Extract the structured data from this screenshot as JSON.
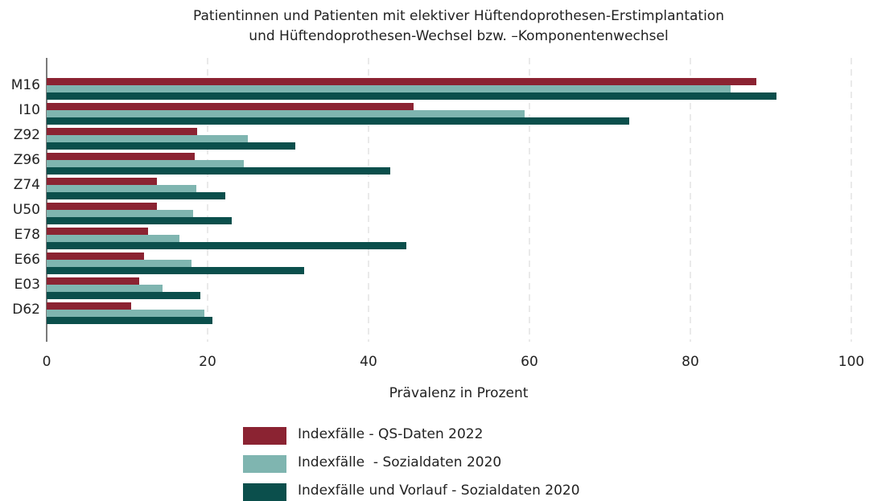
{
  "chart_data": {
    "type": "hbar",
    "title": [
      "Patientinnen und Patienten mit elektiver Hüftendoprothesen-Erstimplantation",
      "und Hüftendoprothesen-Wechsel bzw. –Komponentenwechsel"
    ],
    "x_label": "Prävalenz in Prozent",
    "categories": [
      "M16",
      "I10",
      "Z92",
      "Z96",
      "Z74",
      "U50",
      "E78",
      "E66",
      "E03",
      "D62"
    ],
    "series": [
      {
        "name": "Indexfälle - QS-Daten 2022",
        "color": "#8b2332",
        "values": [
          88.2,
          45.6,
          18.7,
          18.4,
          13.7,
          13.7,
          12.6,
          12.1,
          11.5,
          10.5
        ]
      },
      {
        "name": "Indexfälle  - Sozialdaten 2020",
        "color": "#7fb5b0",
        "values": [
          85.0,
          59.4,
          25.0,
          24.5,
          18.6,
          18.2,
          16.5,
          18.0,
          14.4,
          19.6
        ]
      },
      {
        "name": "Indexfälle und Vorlauf - Sozialdaten 2020",
        "color": "#0b4f4c",
        "values": [
          90.7,
          72.4,
          30.9,
          42.7,
          22.2,
          23.0,
          44.7,
          32.0,
          19.1,
          20.6
        ]
      }
    ],
    "xlim": [
      0,
      100
    ],
    "xticks": [
      0,
      20,
      40,
      60,
      80,
      100
    ],
    "grid": true,
    "legend": "bottom"
  }
}
